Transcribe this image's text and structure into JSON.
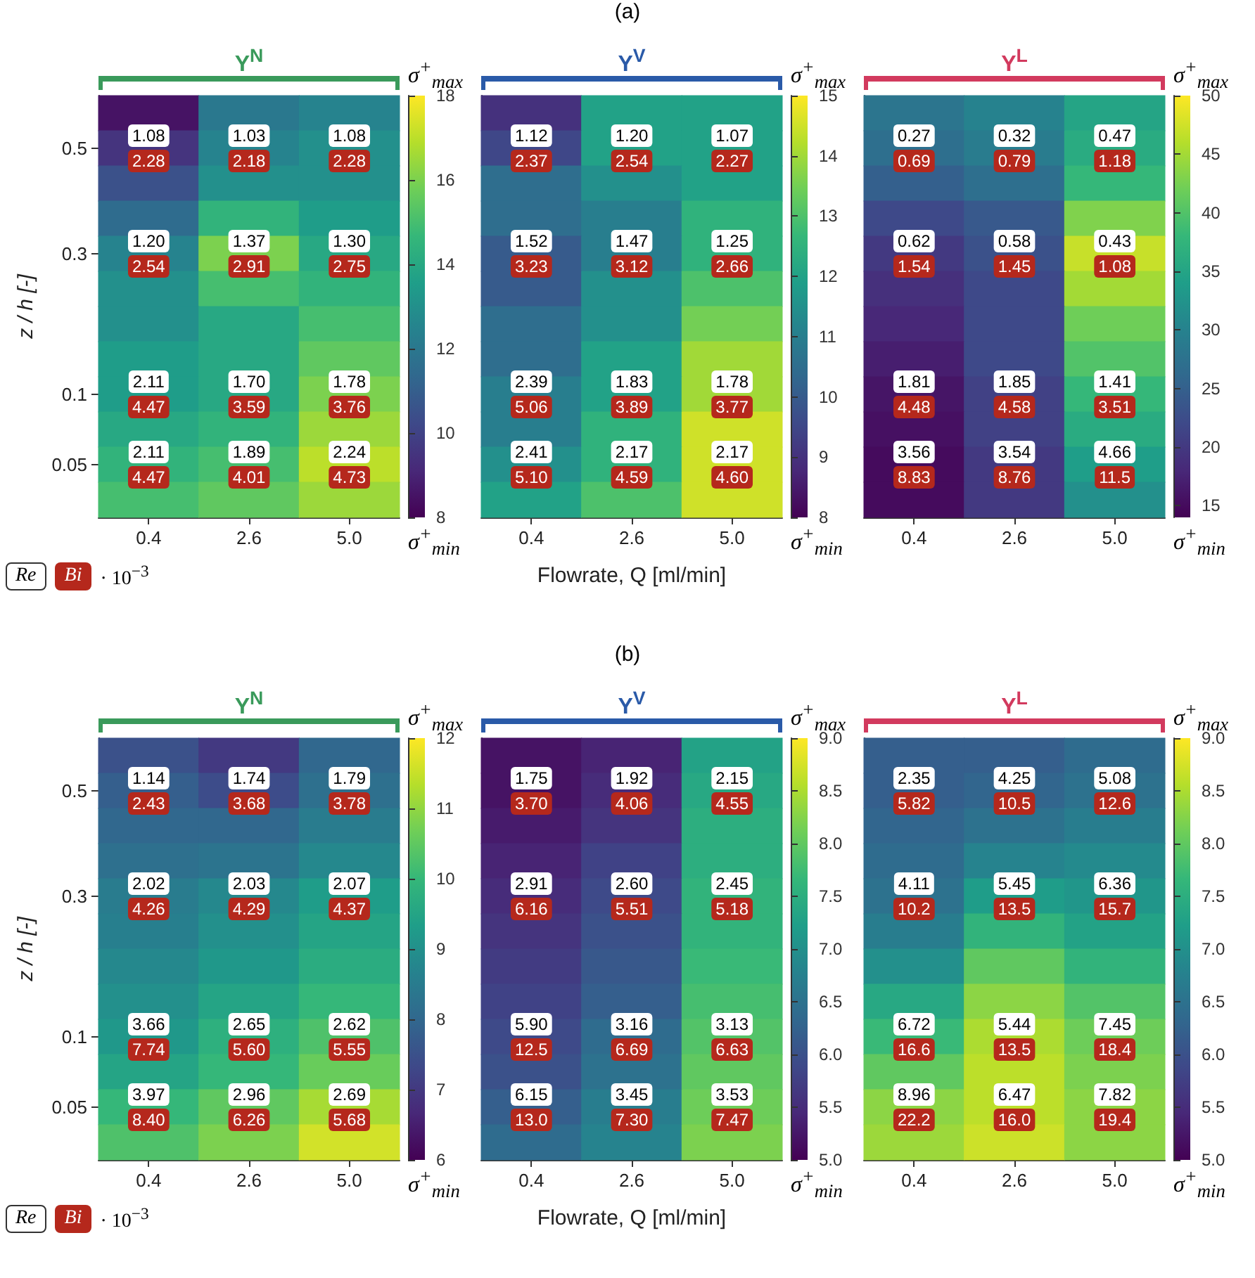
{
  "chart_data": [
    {
      "type": "heatmap",
      "title": "Y$^{N}$",
      "ylabel": "z / h [-]",
      "categories": [
        "0.4",
        "2.6",
        "5.0"
      ],
      "y_categories": [
        null,
        "0.5",
        null,
        null,
        "0.3",
        null,
        null,
        null,
        "0.1",
        null,
        "0.05",
        null
      ],
      "cells": [
        [
          8.5,
          12,
          12.5
        ],
        [
          9.5,
          12.5,
          13
        ],
        [
          10.5,
          13,
          13
        ],
        [
          11.5,
          14.5,
          13.5
        ],
        [
          12.5,
          16,
          14
        ],
        [
          13,
          15,
          14.5
        ],
        [
          13,
          14,
          15
        ],
        [
          13.5,
          14,
          15.5
        ],
        [
          13.5,
          14,
          16
        ],
        [
          14,
          14.5,
          16.5
        ],
        [
          14.5,
          15,
          17
        ],
        [
          15,
          15.5,
          16.5
        ]
      ],
      "cell_labels": [
        [
          null,
          null,
          null
        ],
        [
          "1.08\n2.28",
          "1.03\n2.18",
          "1.08\n2.28"
        ],
        [
          null,
          null,
          null
        ],
        [
          null,
          null,
          null
        ],
        [
          "1.20\n2.54",
          "1.37\n2.91",
          "1.30\n2.75"
        ],
        [
          null,
          null,
          null
        ],
        [
          null,
          null,
          null
        ],
        [
          null,
          null,
          null
        ],
        [
          "2.11\n4.47",
          "1.70\n3.59",
          "1.78\n3.76"
        ],
        [
          null,
          null,
          null
        ],
        [
          "2.11\n4.47",
          "1.89\n4.01",
          "2.24\n4.73"
        ],
        [
          null,
          null,
          null
        ]
      ],
      "clim": [
        8,
        18
      ],
      "cticks": [
        8,
        10,
        12,
        14,
        16,
        18
      ],
      "annotations": [
        "σ$^{+}$$_{max}$",
        "σ$^{+}$$_{min}$",
        "(a)",
        "Re",
        "Bi",
        "· 10$^{−3}$"
      ]
    },
    {
      "type": "heatmap",
      "title": "Y$^{V}$",
      "xlabel": "Flowrate, Q [ml/min]",
      "tick_labels": "x",
      "categories": [
        "0.4",
        "2.6",
        "5.0"
      ],
      "y_categories": [
        null,
        "0.5",
        null,
        null,
        "0.3",
        null,
        null,
        null,
        "0.1",
        null,
        "0.05",
        null
      ],
      "cells": [
        [
          9,
          12,
          12
        ],
        [
          9.5,
          12,
          12
        ],
        [
          10.5,
          11.5,
          12
        ],
        [
          10.5,
          11,
          12.5
        ],
        [
          10,
          11,
          12.5
        ],
        [
          10,
          11.5,
          13
        ],
        [
          10.5,
          11.5,
          13.5
        ],
        [
          10.5,
          12,
          14
        ],
        [
          11,
          12,
          14
        ],
        [
          11,
          12.5,
          14.5
        ],
        [
          11.5,
          12.5,
          14.5
        ],
        [
          12,
          13,
          14.5
        ]
      ],
      "cell_labels": [
        [
          null,
          null,
          null
        ],
        [
          "1.12\n2.37",
          "1.20\n2.54",
          "1.07\n2.27"
        ],
        [
          null,
          null,
          null
        ],
        [
          null,
          null,
          null
        ],
        [
          "1.52\n3.23",
          "1.47\n3.12",
          "1.25\n2.66"
        ],
        [
          null,
          null,
          null
        ],
        [
          null,
          null,
          null
        ],
        [
          null,
          null,
          null
        ],
        [
          "2.39\n5.06",
          "1.83\n3.89",
          "1.78\n3.77"
        ],
        [
          null,
          null,
          null
        ],
        [
          "2.41\n5.10",
          "2.17\n4.59",
          "2.17\n4.60"
        ],
        [
          null,
          null,
          null
        ]
      ],
      "clim": [
        8,
        15
      ],
      "cticks": [
        8,
        9,
        10,
        11,
        12,
        13,
        14,
        15
      ],
      "annotations": [
        "σ$^{+}$$_{max}$",
        "σ$^{+}$$_{min}$"
      ]
    },
    {
      "type": "heatmap",
      "title": "Y$^{L}$",
      "tick_labels": "x",
      "categories": [
        "0.4",
        "2.6",
        "5.0"
      ],
      "y_categories": [
        null,
        "0.5",
        null,
        null,
        "0.3",
        null,
        null,
        null,
        "0.1",
        null,
        "0.05",
        null
      ],
      "cells": [
        [
          28,
          30,
          35
        ],
        [
          27,
          29,
          36
        ],
        [
          25,
          27,
          38
        ],
        [
          22,
          24,
          43
        ],
        [
          20,
          23,
          47
        ],
        [
          19,
          22,
          45
        ],
        [
          18,
          22,
          42
        ],
        [
          17,
          22,
          40
        ],
        [
          16,
          21,
          38
        ],
        [
          15.5,
          21,
          36
        ],
        [
          15,
          20,
          34
        ],
        [
          15,
          20,
          32
        ]
      ],
      "cell_labels": [
        [
          null,
          null,
          null
        ],
        [
          "0.27\n0.69",
          "0.32\n0.79",
          "0.47\n1.18"
        ],
        [
          null,
          null,
          null
        ],
        [
          null,
          null,
          null
        ],
        [
          "0.62\n1.54",
          "0.58\n1.45",
          "0.43\n1.08"
        ],
        [
          null,
          null,
          null
        ],
        [
          null,
          null,
          null
        ],
        [
          null,
          null,
          null
        ],
        [
          "1.81\n4.48",
          "1.85\n4.58",
          "1.41\n3.51"
        ],
        [
          null,
          null,
          null
        ],
        [
          "3.56\n8.83",
          "3.54\n8.76",
          "4.66\n11.5"
        ],
        [
          null,
          null,
          null
        ]
      ],
      "clim": [
        14,
        50
      ],
      "cticks": [
        15,
        20,
        25,
        30,
        35,
        40,
        45,
        50
      ],
      "annotations": [
        "σ$^{+}$$_{max}$",
        "σ$^{+}$$_{min}$"
      ]
    },
    {
      "type": "heatmap",
      "title": "Y$^{N}$",
      "ylabel": "z / h [-]",
      "categories": [
        "0.4",
        "2.6",
        "5.0"
      ],
      "y_categories": [
        null,
        "0.5",
        null,
        null,
        "0.3",
        null,
        null,
        null,
        "0.1",
        null,
        "0.05",
        null
      ],
      "cells": [
        [
          7.5,
          7,
          8
        ],
        [
          7.8,
          7.4,
          8.2
        ],
        [
          8,
          8,
          8.5
        ],
        [
          8.2,
          8.3,
          8.8
        ],
        [
          8.5,
          8.8,
          9.3
        ],
        [
          8.6,
          9,
          9.5
        ],
        [
          8.8,
          9.2,
          9.7
        ],
        [
          9,
          9.5,
          10
        ],
        [
          9.2,
          9.8,
          10.3
        ],
        [
          9.5,
          10,
          10.6
        ],
        [
          10,
          10.5,
          11.2
        ],
        [
          10.3,
          10.8,
          11.6
        ]
      ],
      "cell_labels": [
        [
          null,
          null,
          null
        ],
        [
          "1.14\n2.43",
          "1.74\n3.68",
          "1.79\n3.78"
        ],
        [
          null,
          null,
          null
        ],
        [
          null,
          null,
          null
        ],
        [
          "2.02\n4.26",
          "2.03\n4.29",
          "2.07\n4.37"
        ],
        [
          null,
          null,
          null
        ],
        [
          null,
          null,
          null
        ],
        [
          null,
          null,
          null
        ],
        [
          "3.66\n7.74",
          "2.65\n5.60",
          "2.62\n5.55"
        ],
        [
          null,
          null,
          null
        ],
        [
          "3.97\n8.40",
          "2.96\n6.26",
          "2.69\n5.68"
        ],
        [
          null,
          null,
          null
        ]
      ],
      "clim": [
        6,
        12
      ],
      "cticks": [
        6,
        7,
        8,
        9,
        10,
        11,
        12
      ],
      "annotations": [
        "σ$^{+}$$_{max}$",
        "σ$^{+}$$_{min}$",
        "(b)",
        "Re",
        "Bi",
        "· 10$^{−3}$"
      ]
    },
    {
      "type": "heatmap",
      "title": "Y$^{V}$",
      "xlabel": "Flowrate, Q [ml/min]",
      "tick_labels": "x",
      "categories": [
        "0.4",
        "2.6",
        "5.0"
      ],
      "y_categories": [
        null,
        "0.5",
        null,
        null,
        "0.3",
        null,
        null,
        null,
        "0.1",
        null,
        "0.05",
        null
      ],
      "cells": [
        [
          5.2,
          5.4,
          7.3
        ],
        [
          5.2,
          5.5,
          7.4
        ],
        [
          5.3,
          5.6,
          7.5
        ],
        [
          5.4,
          5.8,
          7.5
        ],
        [
          5.5,
          5.9,
          7.6
        ],
        [
          5.6,
          6.0,
          7.6
        ],
        [
          5.7,
          6.1,
          7.7
        ],
        [
          5.8,
          6.2,
          7.8
        ],
        [
          5.9,
          6.4,
          7.9
        ],
        [
          6.0,
          6.5,
          8.0
        ],
        [
          6.2,
          6.7,
          8.1
        ],
        [
          6.4,
          6.8,
          8.2
        ]
      ],
      "cell_labels": [
        [
          null,
          null,
          null
        ],
        [
          "1.75\n3.70",
          "1.92\n4.06",
          "2.15\n4.55"
        ],
        [
          null,
          null,
          null
        ],
        [
          null,
          null,
          null
        ],
        [
          "2.91\n6.16",
          "2.60\n5.51",
          "2.45\n5.18"
        ],
        [
          null,
          null,
          null
        ],
        [
          null,
          null,
          null
        ],
        [
          null,
          null,
          null
        ],
        [
          "5.90\n12.5",
          "3.16\n6.69",
          "3.13\n6.63"
        ],
        [
          null,
          null,
          null
        ],
        [
          "6.15\n13.0",
          "3.45\n7.30",
          "3.53\n7.47"
        ],
        [
          null,
          null,
          null
        ]
      ],
      "clim": [
        5,
        9
      ],
      "cticks": [
        {
          "value": 5,
          "label": "5.0"
        },
        {
          "value": 5.5,
          "label": "5.5"
        },
        {
          "value": 6,
          "label": "6.0"
        },
        {
          "value": 6.5,
          "label": "6.5"
        },
        {
          "value": 7,
          "label": "7.0"
        },
        {
          "value": 7.5,
          "label": "7.5"
        },
        {
          "value": 8,
          "label": "8.0"
        },
        {
          "value": 8.5,
          "label": "8.5"
        },
        {
          "value": 9,
          "label": "9.0"
        }
      ],
      "annotations": [
        "σ$^{+}$$_{max}$",
        "σ$^{+}$$_{min}$"
      ]
    },
    {
      "type": "heatmap",
      "title": "Y$^{L}$",
      "tick_labels": "x",
      "categories": [
        "0.4",
        "2.6",
        "5.0"
      ],
      "y_categories": [
        null,
        "0.5",
        null,
        null,
        "0.3",
        null,
        null,
        null,
        "0.1",
        null,
        "0.05",
        null
      ],
      "cells": [
        [
          6.2,
          6.2,
          6.4
        ],
        [
          6.2,
          6.3,
          6.5
        ],
        [
          6.3,
          6.5,
          6.7
        ],
        [
          6.4,
          6.8,
          6.9
        ],
        [
          6.5,
          7.2,
          7.1
        ],
        [
          6.7,
          7.6,
          7.3
        ],
        [
          7.0,
          8.0,
          7.6
        ],
        [
          7.4,
          8.3,
          7.9
        ],
        [
          7.7,
          8.5,
          8.1
        ],
        [
          8.0,
          8.6,
          8.2
        ],
        [
          8.3,
          8.6,
          8.3
        ],
        [
          8.4,
          8.7,
          8.3
        ]
      ],
      "cell_labels": [
        [
          null,
          null,
          null
        ],
        [
          "2.35\n5.82",
          "4.25\n10.5",
          "5.08\n12.6"
        ],
        [
          null,
          null,
          null
        ],
        [
          null,
          null,
          null
        ],
        [
          "4.11\n10.2",
          "5.45\n13.5",
          "6.36\n15.7"
        ],
        [
          null,
          null,
          null
        ],
        [
          null,
          null,
          null
        ],
        [
          null,
          null,
          null
        ],
        [
          "6.72\n16.6",
          "5.44\n13.5",
          "7.45\n18.4"
        ],
        [
          null,
          null,
          null
        ],
        [
          "8.96\n22.2",
          "6.47\n16.0",
          "7.82\n19.4"
        ],
        [
          null,
          null,
          null
        ]
      ],
      "clim": [
        5,
        9
      ],
      "cticks": [
        {
          "value": 5,
          "label": "5.0"
        },
        {
          "value": 5.5,
          "label": "5.5"
        },
        {
          "value": 6,
          "label": "6.0"
        },
        {
          "value": 6.5,
          "label": "6.5"
        },
        {
          "value": 7,
          "label": "7.0"
        },
        {
          "value": 7.5,
          "label": "7.5"
        },
        {
          "value": 8,
          "label": "8.0"
        },
        {
          "value": 8.5,
          "label": "8.5"
        },
        {
          "value": 9,
          "label": "9.0"
        }
      ],
      "annotations": [
        "σ$^{+}$$_{max}$",
        "σ$^{+}$$_{min}$"
      ]
    }
  ]
}
